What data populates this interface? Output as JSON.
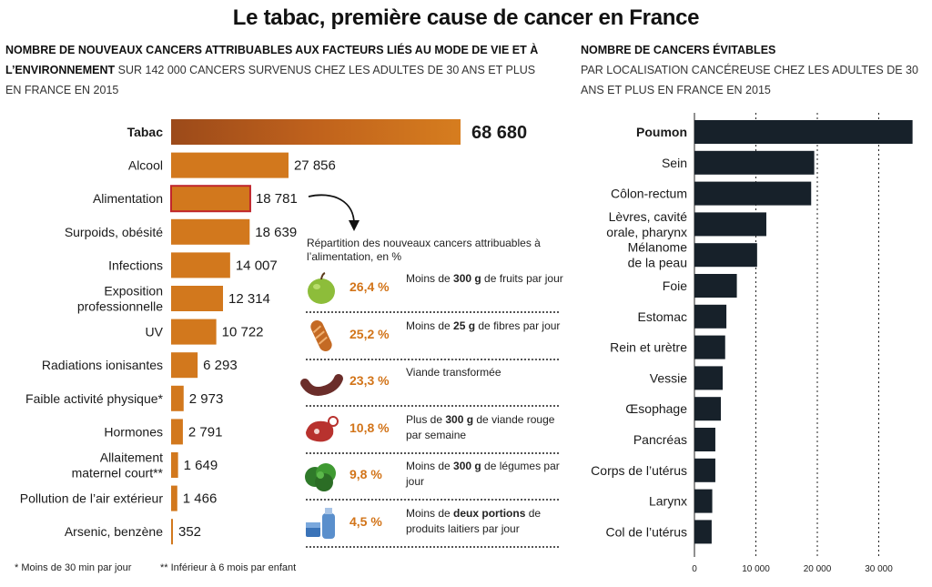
{
  "title": "Le tabac, première cause de cancer en France",
  "left_subtitle": {
    "bold": "Nombre de nouveaux cancers attribuables aux facteurs liés au mode de vie et à l’environnement",
    "rest": "sur 142 000 cancers survenus chez les adultes de 30 ans et plus en France en 2015"
  },
  "right_subtitle": {
    "bold": "Nombre de cancers évitables",
    "rest": "par localisation cancéreuse chez les adultes de 30 ans et plus en France en 2015"
  },
  "colors": {
    "bar_left": "#d2781d",
    "bar_left_dark": "#b55a1a",
    "highlight_border": "#c0262c",
    "bar_right": "#17212a",
    "accent_pct": "#d27419"
  },
  "chart_data": [
    {
      "type": "bar",
      "orientation": "horizontal",
      "categories": [
        "Tabac",
        "Alcool",
        "Alimentation",
        "Surpoids, obésité",
        "Infections",
        "Exposition professionnelle",
        "UV",
        "Radiations ionisantes",
        "Faible activité physique*",
        "Hormones",
        "Allaitement maternel court**",
        "Pollution de l’air extérieur",
        "Arsenic, benzène"
      ],
      "values": [
        68680,
        27856,
        18781,
        18639,
        14007,
        12314,
        10722,
        6293,
        2973,
        2791,
        1649,
        1466,
        352
      ],
      "value_labels": [
        "68 680",
        "27 856",
        "18 781",
        "18 639",
        "14 007",
        "12 314",
        "10 722",
        "6 293",
        "2 973",
        "2 791",
        "1 649",
        "1 466",
        "352"
      ],
      "highlight": "Alimentation",
      "xlim": [
        0,
        68680
      ]
    },
    {
      "type": "bar",
      "orientation": "horizontal",
      "categories": [
        "Poumon",
        "Sein",
        "Côlon-rectum",
        "Lèvres, cavité orale, pharynx",
        "Mélanome de la peau",
        "Foie",
        "Estomac",
        "Rein et urètre",
        "Vessie",
        "Œsophage",
        "Pancréas",
        "Corps de l’utérus",
        "Larynx",
        "Col de l’utérus"
      ],
      "values": [
        35500,
        19500,
        19000,
        11700,
        10200,
        6900,
        5200,
        5000,
        4600,
        4300,
        3400,
        3400,
        2900,
        2800
      ],
      "xlim": [
        0,
        36000
      ],
      "xticks": [
        0,
        10000,
        20000,
        30000
      ],
      "xtick_labels": [
        "0",
        "10 000",
        "20 000",
        "30 000"
      ],
      "grid": true
    }
  ],
  "nutrition": {
    "title": "Répartition des nouveaux cancers attribuables à l’alimentation, en %",
    "items": [
      {
        "icon": "apple-icon",
        "pct": "26,4 %",
        "pre": "Moins de ",
        "bold": "300 g",
        "post": " de fruits par jour"
      },
      {
        "icon": "bread-icon",
        "pct": "25,2 %",
        "pre": "Moins de ",
        "bold": "25 g",
        "post": " de fibres par jour"
      },
      {
        "icon": "sausage-icon",
        "pct": "23,3 %",
        "pre": "Viande transformée",
        "bold": "",
        "post": ""
      },
      {
        "icon": "steak-icon",
        "pct": "10,8 %",
        "pre": "Plus de ",
        "bold": "300 g",
        "post": " de viande rouge par semaine"
      },
      {
        "icon": "vegetables-icon",
        "pct": "9,8 %",
        "pre": "Moins de ",
        "bold": "300 g",
        "post": " de légumes par jour"
      },
      {
        "icon": "dairy-icon",
        "pct": "4,5 %",
        "pre": "Moins de ",
        "bold": "deux portions",
        "post": " de produits laitiers par jour"
      }
    ]
  },
  "footnotes": [
    "* Moins de 30 min par jour",
    "** Inférieur à 6 mois par enfant"
  ]
}
